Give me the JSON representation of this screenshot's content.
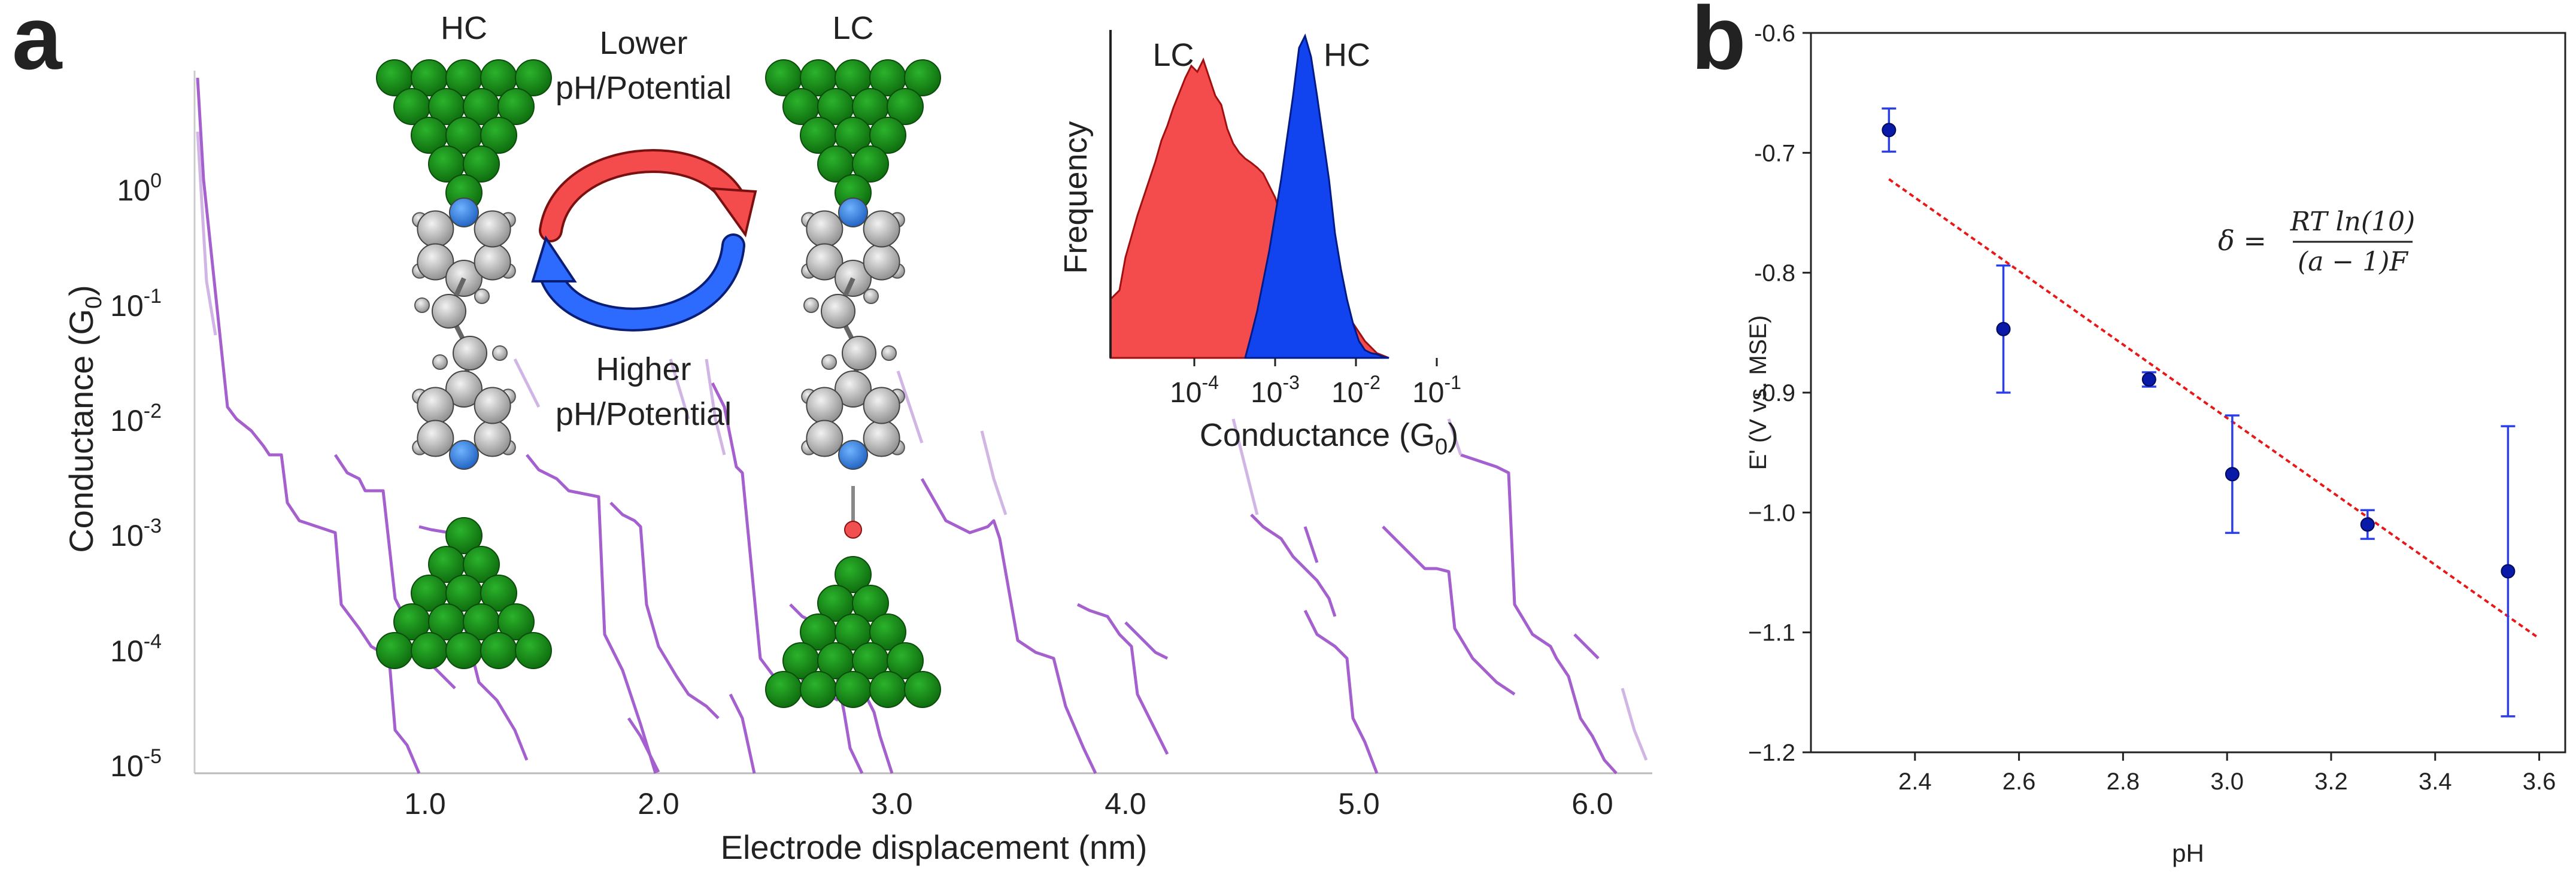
{
  "panels": {
    "a": "a",
    "b": "b"
  },
  "colors": {
    "trace": "#9b4fc9",
    "gold": "#1a8a1a",
    "lc": "#f44c4c",
    "hc": "#1144ee",
    "fit": "#e81818",
    "point": "#0a1aa8"
  },
  "panel_a": {
    "xlabel": "Electrode displacement (nm)",
    "ylabel_main": "Conductance (G",
    "ylabel_sub": "0",
    "ylabel_end": ")",
    "x_ticks": [
      "1.0",
      "2.0",
      "3.0",
      "4.0",
      "5.0",
      "6.0"
    ],
    "y_ticks": [
      {
        "base": "10",
        "exp": "0"
      },
      {
        "base": "10",
        "exp": "-1"
      },
      {
        "base": "10",
        "exp": "-2"
      },
      {
        "base": "10",
        "exp": "-3"
      },
      {
        "base": "10",
        "exp": "-4"
      },
      {
        "base": "10",
        "exp": "-5"
      }
    ],
    "junction_left": "HC",
    "junction_right": "LC",
    "arrow_top": [
      "Lower",
      "pH/Potential"
    ],
    "arrow_bottom": [
      "Higher",
      "pH/Potential"
    ]
  },
  "inset": {
    "ylabel": "Frequency",
    "xlabel_main": "Conductance (G",
    "xlabel_sub": "0",
    "xlabel_end": ")",
    "label_lc": "LC",
    "label_hc": "HC",
    "x_ticks": [
      {
        "base": "10",
        "exp": "-4"
      },
      {
        "base": "10",
        "exp": "-3"
      },
      {
        "base": "10",
        "exp": "-2"
      },
      {
        "base": "10",
        "exp": "-1"
      }
    ]
  },
  "chart_data": [
    {
      "type": "scatter",
      "title": "",
      "xlabel": "pH",
      "ylabel": "E' (V vs. MSE)",
      "xlim": [
        2.2,
        3.65
      ],
      "ylim": [
        -1.2,
        -0.6
      ],
      "x_ticks": [
        2.4,
        2.6,
        2.8,
        3.0,
        3.2,
        3.4,
        3.6
      ],
      "y_ticks": [
        -0.6,
        -0.7,
        -0.8,
        -0.9,
        -1.0,
        -1.1,
        -1.2
      ],
      "x_tick_labels": [
        "2.4",
        "2.6",
        "2.8",
        "3.0",
        "3.2",
        "3.4",
        "3.6"
      ],
      "y_tick_labels": [
        "-0.6",
        "-0.7",
        "-0.8",
        "-0.9",
        "−1.0",
        "−1.1",
        "−1.2"
      ],
      "points": [
        {
          "x": 2.35,
          "y": -0.681,
          "err": 0.018
        },
        {
          "x": 2.57,
          "y": -0.847,
          "err": 0.053
        },
        {
          "x": 2.85,
          "y": -0.889,
          "err": 0.006
        },
        {
          "x": 3.01,
          "y": -0.968,
          "err": 0.049
        },
        {
          "x": 3.27,
          "y": -1.01,
          "err": 0.012
        },
        {
          "x": 3.54,
          "y": -1.049,
          "err": 0.121
        }
      ],
      "fit_line": {
        "x": [
          2.35,
          3.6
        ],
        "y": [
          -0.722,
          -1.105
        ]
      },
      "equation": {
        "lhs": "δ =",
        "numerator": "RT ln(10)",
        "denominator": "(a − 1)F"
      }
    }
  ]
}
